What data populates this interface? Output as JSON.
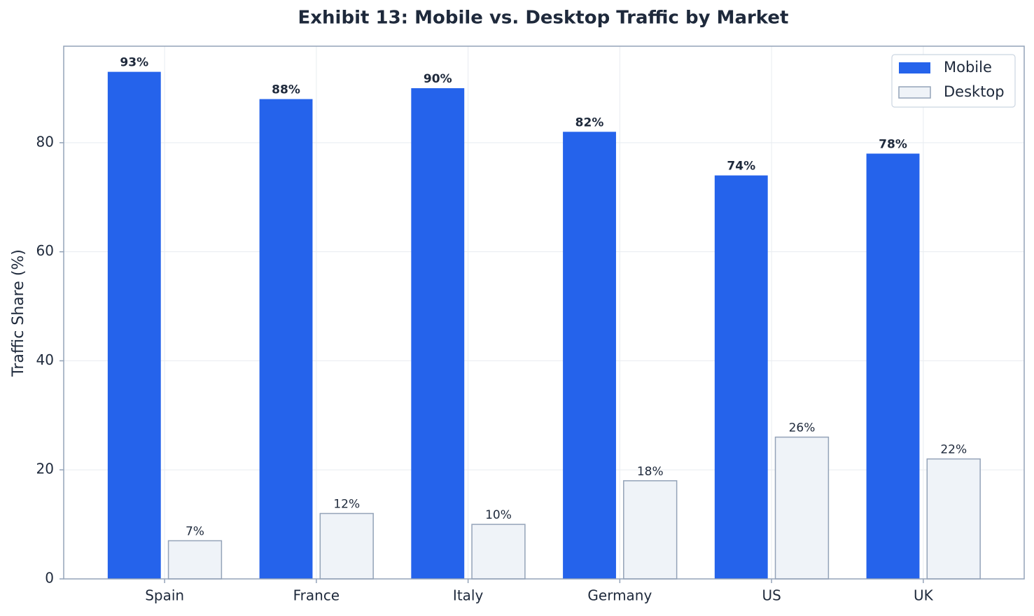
{
  "chart_data": {
    "type": "bar",
    "title": "Exhibit 13: Mobile vs. Desktop Traffic by Market",
    "y_label": "Traffic Share (%)",
    "categories": [
      "Spain",
      "France",
      "Italy",
      "Germany",
      "US",
      "UK"
    ],
    "series": [
      {
        "name": "Mobile",
        "color": "#2563eb",
        "values": [
          93,
          88,
          90,
          82,
          74,
          78
        ],
        "value_labels": [
          "93%",
          "88%",
          "90%",
          "82%",
          "74%",
          "78%"
        ]
      },
      {
        "name": "Desktop",
        "color": "#eff3f8",
        "edgecolor": "#94a3b8",
        "values": [
          7,
          12,
          10,
          18,
          26,
          22
        ],
        "value_labels": [
          "7%",
          "12%",
          "10%",
          "18%",
          "26%",
          "22%"
        ]
      }
    ],
    "ylim": [
      0,
      97.7
    ],
    "yticks": [
      0,
      20,
      40,
      60,
      80
    ],
    "grid": true,
    "legend": "upper right"
  }
}
